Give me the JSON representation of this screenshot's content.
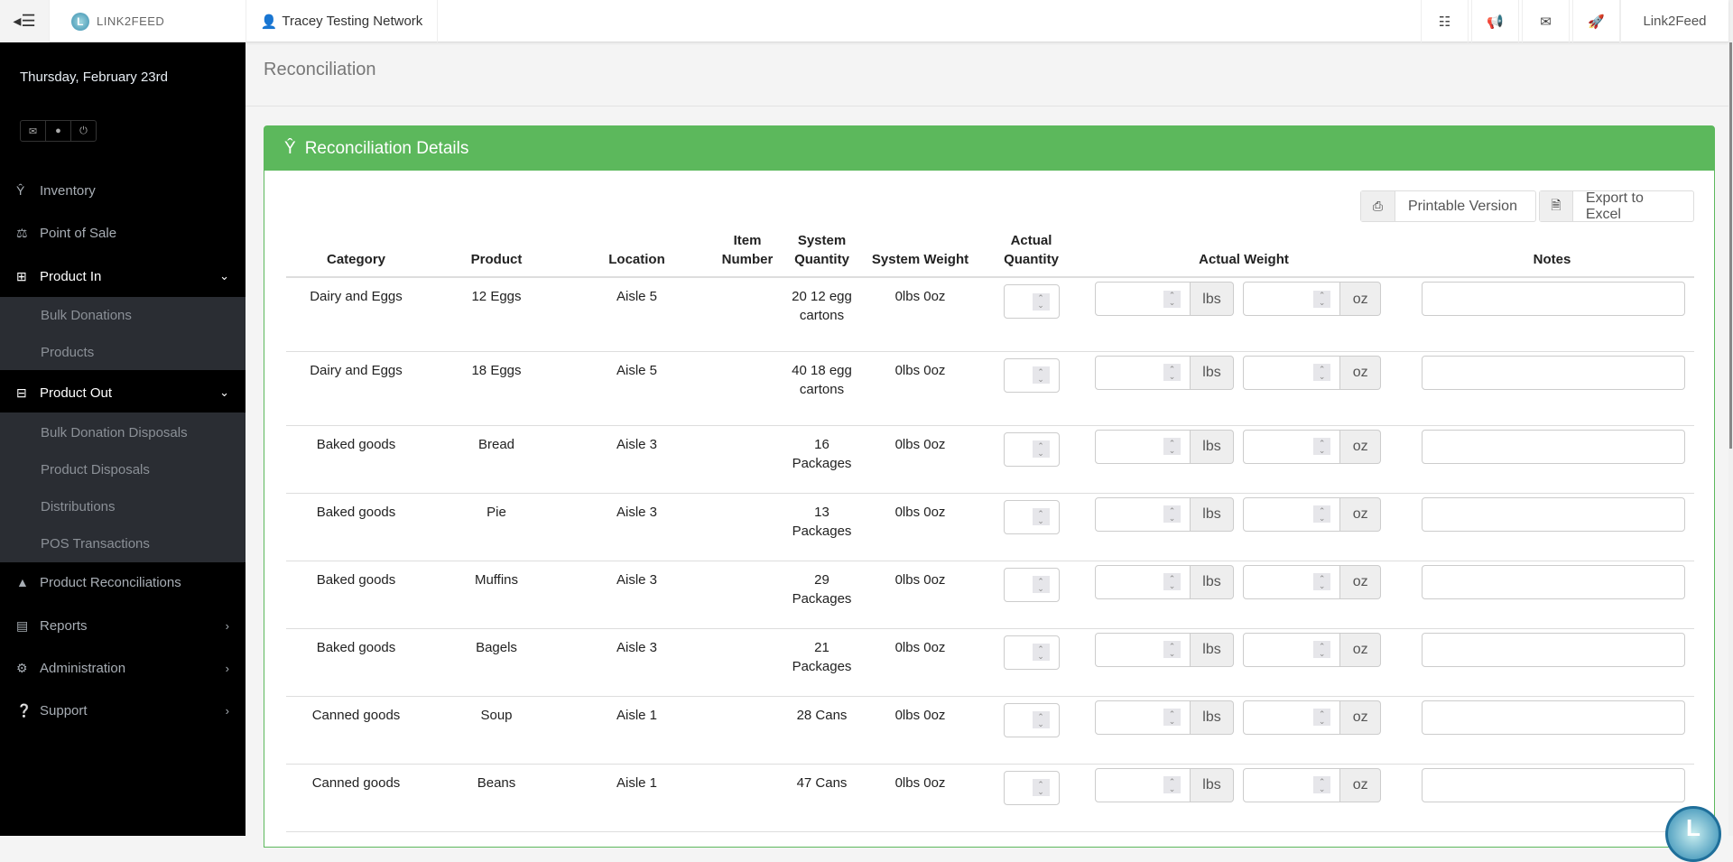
{
  "topbar": {
    "brand": "LINK2FEED",
    "network": "Tracey Testing Network",
    "right_icons": [
      "sitemap-icon",
      "bullhorn-icon",
      "envelope-icon",
      "rocket-icon"
    ],
    "user_menu": "Link2Feed"
  },
  "sidebar": {
    "date": "Thursday, February 23rd",
    "quick_icons": [
      "envelope-icon",
      "user-icon",
      "power-icon"
    ],
    "items": [
      {
        "label": "Inventory",
        "icon": "cutlery-icon"
      },
      {
        "label": "Point of Sale",
        "icon": "balance-scale-icon"
      },
      {
        "label": "Product In",
        "icon": "plus-square-icon",
        "expanded": true,
        "children": [
          "Bulk Donations",
          "Products"
        ]
      },
      {
        "label": "Product Out",
        "icon": "minus-square-icon",
        "expanded": true,
        "children": [
          "Bulk Donation Disposals",
          "Product Disposals",
          "Distributions",
          "POS Transactions"
        ]
      },
      {
        "label": "Product Reconciliations",
        "icon": "warning-icon"
      },
      {
        "label": "Reports",
        "icon": "bar-chart-icon"
      },
      {
        "label": "Administration",
        "icon": "cogs-icon"
      },
      {
        "label": "Support",
        "icon": "question-circle-icon"
      }
    ]
  },
  "page": {
    "title": "Reconciliation"
  },
  "panel": {
    "title": "Reconciliation Details",
    "header_color": "#5cb85c",
    "print_label": "Printable Version",
    "export_label": "Export to Excel",
    "columns": [
      "Category",
      "Product",
      "Location",
      "Item Number",
      "System Quantity",
      "System Weight",
      "Actual Quantity",
      "Actual Weight",
      "Notes"
    ],
    "unit_lbs": "lbs",
    "unit_oz": "oz",
    "rows": [
      {
        "category": "Dairy and Eggs",
        "product": "12 Eggs",
        "location": "Aisle 5",
        "item_number": "",
        "system_quantity": "20 12 egg cartons",
        "system_weight": "0lbs 0oz"
      },
      {
        "category": "Dairy and Eggs",
        "product": "18 Eggs",
        "location": "Aisle 5",
        "item_number": "",
        "system_quantity": "40 18 egg cartons",
        "system_weight": "0lbs 0oz"
      },
      {
        "category": "Baked goods",
        "product": "Bread",
        "location": "Aisle 3",
        "item_number": "",
        "system_quantity": "16 Packages",
        "system_weight": "0lbs 0oz"
      },
      {
        "category": "Baked goods",
        "product": "Pie",
        "location": "Aisle 3",
        "item_number": "",
        "system_quantity": "13 Packages",
        "system_weight": "0lbs 0oz"
      },
      {
        "category": "Baked goods",
        "product": "Muffins",
        "location": "Aisle 3",
        "item_number": "",
        "system_quantity": "29 Packages",
        "system_weight": "0lbs 0oz"
      },
      {
        "category": "Baked goods",
        "product": "Bagels",
        "location": "Aisle 3",
        "item_number": "",
        "system_quantity": "21 Packages",
        "system_weight": "0lbs 0oz"
      },
      {
        "category": "Canned goods",
        "product": "Soup",
        "location": "Aisle 1",
        "item_number": "",
        "system_quantity": "28 Cans",
        "system_weight": "0lbs 0oz"
      },
      {
        "category": "Canned goods",
        "product": "Beans",
        "location": "Aisle 1",
        "item_number": "",
        "system_quantity": "47 Cans",
        "system_weight": "0lbs 0oz"
      }
    ]
  }
}
